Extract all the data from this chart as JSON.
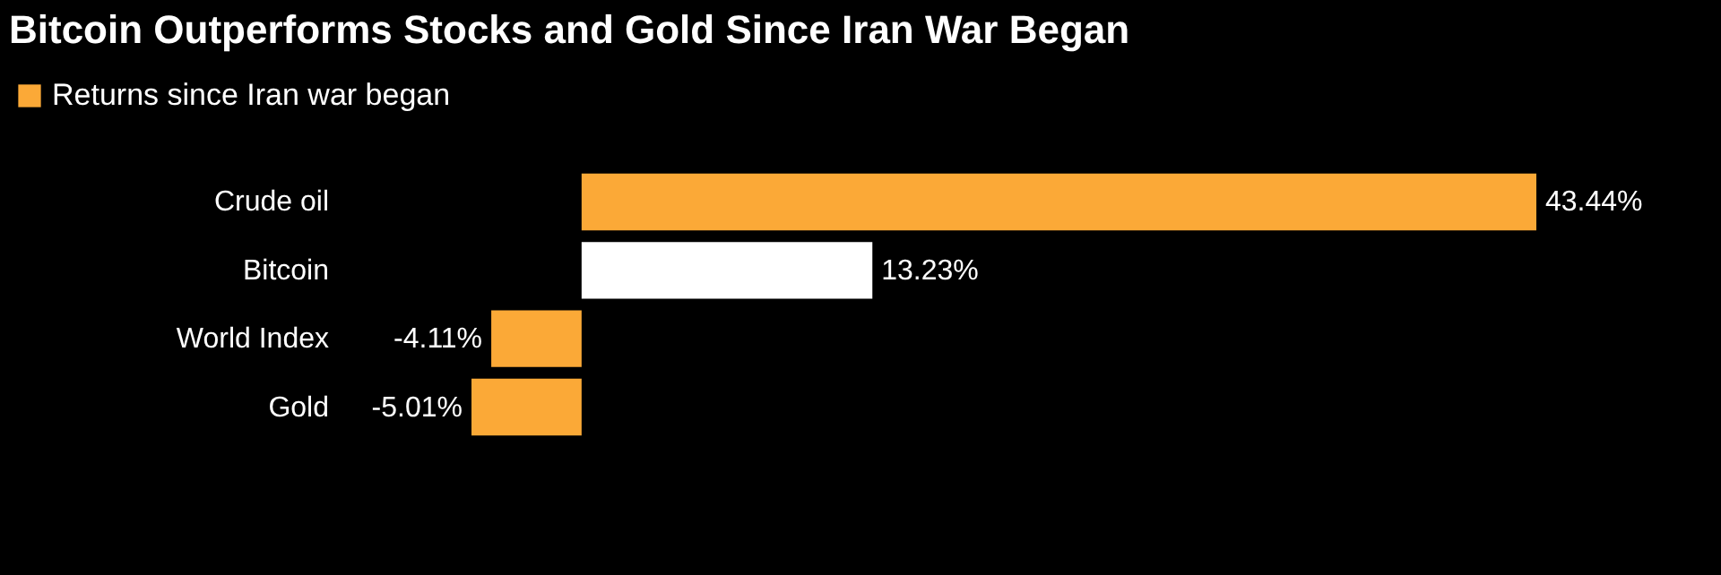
{
  "chart_data": {
    "type": "bar",
    "orientation": "horizontal",
    "title": "Bitcoin Outperforms Stocks and Gold Since Iran War Began",
    "categories": [
      "Crude oil",
      "Bitcoin",
      "World Index",
      "Gold"
    ],
    "series": [
      {
        "name": "Returns since Iran war began",
        "values": [
          43.44,
          13.23,
          -4.11,
          -5.01
        ],
        "colors": [
          "#fba937",
          "#ffffff",
          "#fba937",
          "#fba937"
        ],
        "value_labels": [
          "43.44%",
          "13.23%",
          "-4.11%",
          "-5.01%"
        ]
      }
    ],
    "legend": "top left"
  }
}
